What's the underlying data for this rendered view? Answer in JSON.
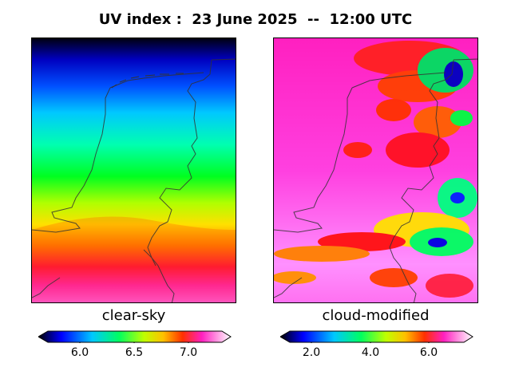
{
  "title": "UV index :  23 June 2025  --  12:00 UTC",
  "panels": [
    {
      "label": "clear-sky",
      "colorbar": {
        "range": [
          5.7,
          7.35
        ],
        "ticks": [
          "6.0",
          "6.5",
          "7.0"
        ],
        "tick_values": [
          6.0,
          6.5,
          7.0
        ]
      }
    },
    {
      "label": "cloud-modified",
      "colorbar": {
        "range": [
          1.0,
          7.3
        ],
        "ticks": [
          "2.0",
          "4.0",
          "6.0"
        ],
        "tick_values": [
          2.0,
          4.0,
          6.0
        ]
      }
    }
  ],
  "colors": {
    "ramp": [
      "#000000",
      "#0000ff",
      "#00c8ff",
      "#00ff80",
      "#ffff00",
      "#ff8000",
      "#ff0060",
      "#ff40ff",
      "#ffffff"
    ]
  }
}
